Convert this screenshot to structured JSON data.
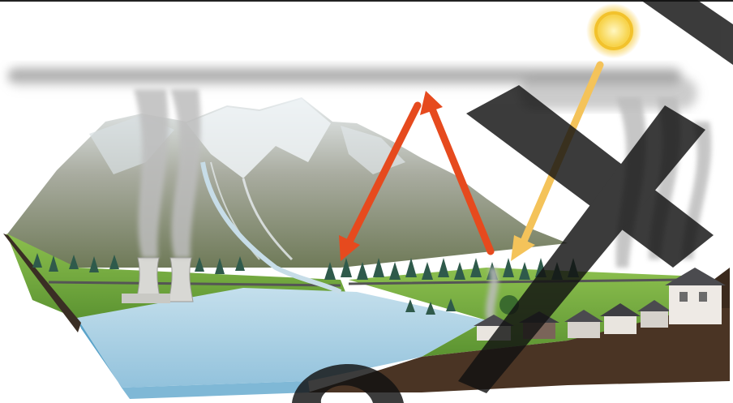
{
  "diagram": {
    "elements": [
      "sun-icon",
      "smog-layer",
      "mountain-range",
      "cooling-towers",
      "forest",
      "river",
      "lake",
      "village-houses",
      "chimney-smoke",
      "incoming-solar-radiation-arrow",
      "reflected-radiation-arrow",
      "trapped-radiation-arrow",
      "watermark-stroke"
    ],
    "colors": {
      "sky": "#ffffff",
      "smog": "#8f8f8f",
      "sun": "#f7c531",
      "incoming_arrow": "#f4c35a",
      "reflected_arrows": "#e64a1e",
      "lake": "#a9cfe3",
      "lake_edge": "#5aa3c9",
      "grass": "#6aa33a",
      "soil": "#4a3424",
      "mountain_rock": "#8a8a7a",
      "snow": "#f1f4f6",
      "trees": "#2f5a4b",
      "watermark": "#111111"
    }
  }
}
